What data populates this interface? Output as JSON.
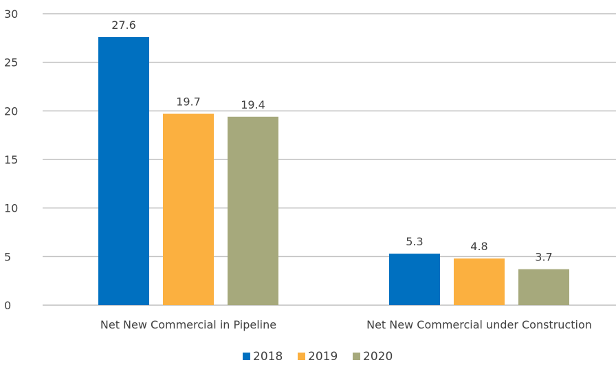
{
  "chart_data": {
    "type": "bar",
    "categories": [
      "Net New Commercial in Pipeline",
      "Net New Commercial under Construction"
    ],
    "series": [
      {
        "name": "2018",
        "values": [
          27.6,
          5.3
        ],
        "color": "#0070C0"
      },
      {
        "name": "2019",
        "values": [
          19.7,
          4.8
        ],
        "color": "#FBB040"
      },
      {
        "name": "2020",
        "values": [
          19.4,
          3.7
        ],
        "color": "#A6A97C"
      }
    ],
    "data_labels": [
      [
        "27.6",
        "19.7",
        "19.4"
      ],
      [
        "5.3",
        "4.8",
        "3.7"
      ]
    ],
    "yticks": [
      "0",
      "5",
      "10",
      "15",
      "20",
      "25",
      "30"
    ],
    "ylim": [
      0,
      30
    ],
    "grid": true,
    "legend_position": "bottom"
  }
}
